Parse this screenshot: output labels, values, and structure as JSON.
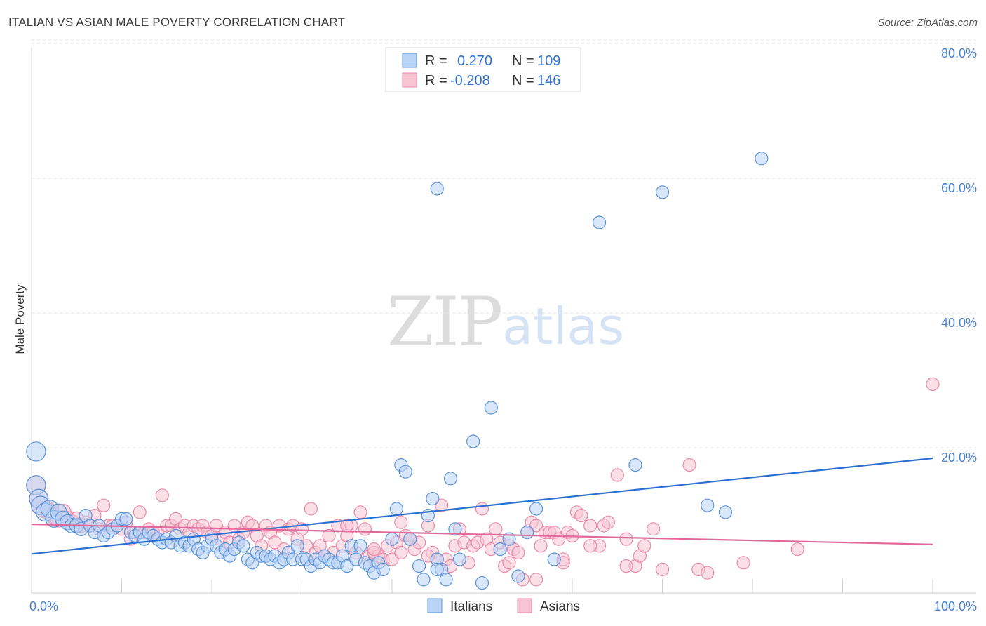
{
  "header": {
    "title": "ITALIAN VS ASIAN MALE POVERTY CORRELATION CHART",
    "source": "Source: ZipAtlas.com"
  },
  "watermark": {
    "zip": "ZIP",
    "atlas": "atlas"
  },
  "legend": {
    "italians": {
      "r_label": "R =",
      "r_value": "0.270",
      "n_label": "N =",
      "n_value": "109"
    },
    "asians": {
      "r_label": "R =",
      "r_value": "-0.208",
      "n_label": "N =",
      "n_value": "146"
    }
  },
  "bottom_legend": {
    "italians": "Italians",
    "asians": "Asians"
  },
  "colors": {
    "italians_fill": "#b9d3f5",
    "italians_stroke": "#5b93d9",
    "italians_line": "#2b6fd1",
    "asians_fill": "#f8c4d3",
    "asians_stroke": "#e98aa8",
    "asians_line": "#e0699a",
    "tick": "#4a7fd0",
    "grid": "#e3e3e3"
  },
  "chart_data": {
    "type": "scatter",
    "ylabel": "Male Poverty",
    "x_tick_labels": [
      "0.0%",
      "100.0%"
    ],
    "y_tick_labels": [
      "20.0%",
      "40.0%",
      "60.0%",
      "80.0%"
    ],
    "y_ticks": [
      20,
      40,
      60,
      80
    ],
    "xlim": [
      0,
      100
    ],
    "ylim": [
      0,
      82
    ],
    "grid": true,
    "legend_placement": "top-center",
    "series": [
      {
        "name": "Italians",
        "trend": {
          "x": [
            0,
            100
          ],
          "y": [
            5.8,
            20.0
          ]
        },
        "points": [
          [
            0.5,
            21
          ],
          [
            0.5,
            16
          ],
          [
            0.8,
            14
          ],
          [
            1,
            13
          ],
          [
            1.5,
            12
          ],
          [
            2,
            12.5
          ],
          [
            2.5,
            11
          ],
          [
            3,
            12
          ],
          [
            3.5,
            11
          ],
          [
            4,
            10.5
          ],
          [
            4.5,
            10
          ],
          [
            5,
            10
          ],
          [
            5.5,
            9.5
          ],
          [
            6,
            11.5
          ],
          [
            6.5,
            10
          ],
          [
            7,
            9
          ],
          [
            7.5,
            10
          ],
          [
            8,
            8.5
          ],
          [
            8.5,
            9
          ],
          [
            9,
            9.5
          ],
          [
            9.5,
            10
          ],
          [
            10,
            11
          ],
          [
            10.5,
            11
          ],
          [
            11,
            9
          ],
          [
            11.5,
            8.5
          ],
          [
            12,
            9
          ],
          [
            12.5,
            8
          ],
          [
            13,
            9
          ],
          [
            13.5,
            8.5
          ],
          [
            14,
            8
          ],
          [
            14.5,
            7.5
          ],
          [
            15,
            8
          ],
          [
            15.5,
            7.5
          ],
          [
            16,
            8.5
          ],
          [
            16.5,
            7
          ],
          [
            17,
            7.5
          ],
          [
            17.5,
            7
          ],
          [
            18,
            8
          ],
          [
            18.5,
            6.5
          ],
          [
            19,
            6
          ],
          [
            19.5,
            7
          ],
          [
            20,
            8
          ],
          [
            20.5,
            7
          ],
          [
            21,
            6
          ],
          [
            21.5,
            6.5
          ],
          [
            22,
            5.5
          ],
          [
            22.5,
            6.5
          ],
          [
            23,
            7.5
          ],
          [
            23.5,
            7
          ],
          [
            24,
            5
          ],
          [
            24.5,
            4.5
          ],
          [
            25,
            6
          ],
          [
            25.5,
            5.5
          ],
          [
            26,
            5.5
          ],
          [
            26.5,
            5
          ],
          [
            27,
            5.5
          ],
          [
            27.5,
            4.5
          ],
          [
            28,
            5
          ],
          [
            28.5,
            6
          ],
          [
            29,
            5
          ],
          [
            29.5,
            7
          ],
          [
            30,
            5
          ],
          [
            30.5,
            5
          ],
          [
            31,
            4
          ],
          [
            31.5,
            5
          ],
          [
            32,
            4.5
          ],
          [
            32.5,
            5.5
          ],
          [
            33,
            5
          ],
          [
            33.5,
            4.5
          ],
          [
            34,
            4.5
          ],
          [
            34.5,
            5.5
          ],
          [
            35,
            4
          ],
          [
            35.5,
            7
          ],
          [
            36,
            5
          ],
          [
            36.5,
            7
          ],
          [
            37,
            4.5
          ],
          [
            37.5,
            4
          ],
          [
            38,
            3
          ],
          [
            38.5,
            4.5
          ],
          [
            39,
            3.5
          ],
          [
            40,
            8
          ],
          [
            40.5,
            12.5
          ],
          [
            41,
            19
          ],
          [
            41.5,
            18
          ],
          [
            42,
            8
          ],
          [
            43,
            4
          ],
          [
            43.5,
            2
          ],
          [
            44,
            11.5
          ],
          [
            44.5,
            14
          ],
          [
            45,
            5
          ],
          [
            45.5,
            3.5
          ],
          [
            46,
            2
          ],
          [
            46.5,
            17
          ],
          [
            47,
            9.5
          ],
          [
            47.5,
            5
          ],
          [
            49,
            22.5
          ],
          [
            50,
            1.5
          ],
          [
            51,
            27.5
          ],
          [
            52,
            6.5
          ],
          [
            53,
            8
          ],
          [
            54,
            2.5
          ],
          [
            55,
            9
          ],
          [
            56,
            12.5
          ],
          [
            58,
            5
          ],
          [
            63,
            55
          ],
          [
            67,
            19
          ],
          [
            70,
            59.5
          ],
          [
            75,
            13
          ],
          [
            77,
            12
          ],
          [
            81,
            64.5
          ],
          [
            45,
            60
          ],
          [
            45,
            3.5
          ]
        ]
      },
      {
        "name": "Asians",
        "trend": {
          "x": [
            0,
            100
          ],
          "y": [
            10.2,
            7.2
          ]
        },
        "points": [
          [
            0.5,
            16
          ],
          [
            0.8,
            14
          ],
          [
            1,
            13
          ],
          [
            1.5,
            12.5
          ],
          [
            2,
            12
          ],
          [
            2.5,
            11.5
          ],
          [
            3,
            11
          ],
          [
            3.5,
            12
          ],
          [
            4,
            11
          ],
          [
            4.5,
            10.5
          ],
          [
            5,
            11
          ],
          [
            5.5,
            10
          ],
          [
            6,
            10.5
          ],
          [
            6.5,
            10
          ],
          [
            7,
            11.5
          ],
          [
            7.5,
            9.5
          ],
          [
            8,
            13
          ],
          [
            8.5,
            10
          ],
          [
            9,
            10
          ],
          [
            9.5,
            10
          ],
          [
            10,
            9.5
          ],
          [
            10.5,
            10.5
          ],
          [
            11,
            8
          ],
          [
            11.5,
            9
          ],
          [
            12,
            12
          ],
          [
            12.5,
            9
          ],
          [
            13,
            9.5
          ],
          [
            13.5,
            9
          ],
          [
            14,
            9
          ],
          [
            14.5,
            14.5
          ],
          [
            15,
            10
          ],
          [
            15.5,
            10
          ],
          [
            16,
            11
          ],
          [
            16.5,
            9.5
          ],
          [
            17,
            10
          ],
          [
            17.5,
            9
          ],
          [
            18,
            10
          ],
          [
            18.5,
            9.5
          ],
          [
            19,
            10
          ],
          [
            19.5,
            9
          ],
          [
            20,
            8.5
          ],
          [
            20.5,
            10
          ],
          [
            21,
            8
          ],
          [
            21.5,
            9
          ],
          [
            22,
            7.5
          ],
          [
            22.5,
            10
          ],
          [
            23,
            8
          ],
          [
            23.5,
            9
          ],
          [
            24,
            10.5
          ],
          [
            24.5,
            10
          ],
          [
            25,
            8.5
          ],
          [
            25.5,
            7
          ],
          [
            26,
            10
          ],
          [
            26.5,
            9
          ],
          [
            27,
            7.5
          ],
          [
            27.5,
            10
          ],
          [
            28,
            6.5
          ],
          [
            28.5,
            9.5
          ],
          [
            29,
            10
          ],
          [
            29.5,
            8
          ],
          [
            30,
            9.5
          ],
          [
            30.5,
            7
          ],
          [
            31,
            12.5
          ],
          [
            31.5,
            6
          ],
          [
            32,
            7
          ],
          [
            32.5,
            5.5
          ],
          [
            33,
            8.5
          ],
          [
            33.5,
            6
          ],
          [
            34,
            10
          ],
          [
            34.5,
            7
          ],
          [
            35,
            8.5
          ],
          [
            35.5,
            10
          ],
          [
            36,
            6
          ],
          [
            36.5,
            12
          ],
          [
            37,
            9.5
          ],
          [
            37.5,
            5.5
          ],
          [
            38,
            6
          ],
          [
            38.5,
            5.5
          ],
          [
            39,
            5
          ],
          [
            39.5,
            7
          ],
          [
            40,
            5
          ],
          [
            40.5,
            7.5
          ],
          [
            41,
            10.5
          ],
          [
            41.5,
            8.5
          ],
          [
            42,
            8
          ],
          [
            42.5,
            6.5
          ],
          [
            43,
            7.5
          ],
          [
            44,
            10
          ],
          [
            44.5,
            6
          ],
          [
            45,
            5
          ],
          [
            45.5,
            13
          ],
          [
            46,
            5
          ],
          [
            46.5,
            4
          ],
          [
            47,
            7
          ],
          [
            47.5,
            9.5
          ],
          [
            48,
            7.5
          ],
          [
            48.5,
            4.5
          ],
          [
            49,
            7
          ],
          [
            49.5,
            7.5
          ],
          [
            50,
            12.5
          ],
          [
            50.5,
            8
          ],
          [
            51,
            6.5
          ],
          [
            51.5,
            9.5
          ],
          [
            52,
            7.5
          ],
          [
            52.5,
            4
          ],
          [
            53,
            7
          ],
          [
            53.5,
            6.5
          ],
          [
            54,
            6
          ],
          [
            54.5,
            2
          ],
          [
            55,
            9
          ],
          [
            55.5,
            10.5
          ],
          [
            56,
            10
          ],
          [
            56.5,
            7
          ],
          [
            57,
            9
          ],
          [
            57.5,
            9
          ],
          [
            58,
            9
          ],
          [
            58.5,
            8
          ],
          [
            59,
            5
          ],
          [
            59.5,
            9
          ],
          [
            60,
            8.5
          ],
          [
            60.5,
            12
          ],
          [
            61,
            11.5
          ],
          [
            62,
            10
          ],
          [
            63,
            7
          ],
          [
            63.5,
            10
          ],
          [
            64,
            10.5
          ],
          [
            65,
            17.5
          ],
          [
            66,
            8
          ],
          [
            67,
            4
          ],
          [
            67.5,
            5.5
          ],
          [
            68,
            7
          ],
          [
            69,
            9.5
          ],
          [
            73,
            19
          ],
          [
            74,
            3.5
          ],
          [
            75,
            3
          ],
          [
            79,
            4.5
          ],
          [
            85,
            6.5
          ],
          [
            100,
            31
          ],
          [
            35,
            10
          ],
          [
            38,
            6.5
          ],
          [
            41,
            6
          ],
          [
            44,
            5.5
          ],
          [
            53,
            4.5
          ],
          [
            56,
            2
          ],
          [
            59,
            4.5
          ],
          [
            62,
            7
          ],
          [
            66,
            4
          ],
          [
            70,
            3.5
          ]
        ]
      }
    ]
  }
}
